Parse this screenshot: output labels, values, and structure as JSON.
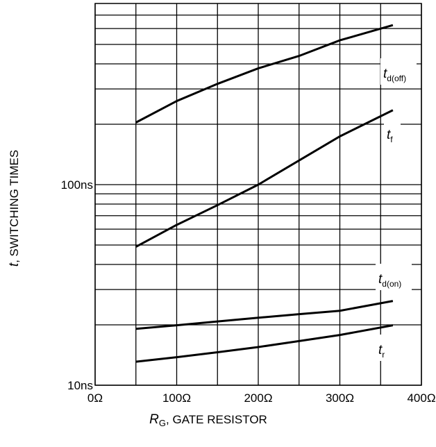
{
  "chart_data": {
    "type": "line",
    "ylabel_italic": "t",
    "ylabel": ", SWITCHING TIMES",
    "xlabel_italic": "R",
    "xlabel_sub": "G",
    "xlabel": ", GATE RESISTOR",
    "xlim": [
      0,
      400
    ],
    "xticks": [
      {
        "value": 0,
        "label": "0Ω"
      },
      {
        "value": 100,
        "label": "100Ω"
      },
      {
        "value": 200,
        "label": "200Ω"
      },
      {
        "value": 300,
        "label": "300Ω"
      },
      {
        "value": 400,
        "label": "400Ω"
      }
    ],
    "minor_xticks": [
      50,
      150,
      250,
      350
    ],
    "ylim": [
      10,
      800
    ],
    "log_y": true,
    "yticks": [
      {
        "value": 10,
        "label": "10ns"
      },
      {
        "value": 100,
        "label": "100ns"
      }
    ],
    "minor_yticks": [
      20,
      30,
      40,
      50,
      60,
      70,
      80,
      90,
      200,
      300,
      400,
      500,
      600,
      700
    ],
    "grid": true,
    "x": [
      50,
      100,
      150,
      200,
      250,
      300,
      365
    ],
    "series": [
      {
        "name": "t",
        "name_sub": "d(off)",
        "color": "#000000",
        "values": [
          204,
          261,
          318,
          380,
          438,
          524,
          624
        ]
      },
      {
        "name": "t",
        "name_sub": "f",
        "color": "#000000",
        "values": [
          49,
          63,
          79,
          100,
          132,
          174,
          235
        ]
      },
      {
        "name": "t",
        "name_sub": "d(on)",
        "color": "#000000",
        "values": [
          19.1,
          19.9,
          20.8,
          21.7,
          22.6,
          23.5,
          26.3
        ]
      },
      {
        "name": "t",
        "name_sub": "r",
        "color": "#000000",
        "values": [
          13.1,
          13.8,
          14.6,
          15.5,
          16.6,
          17.8,
          19.9
        ]
      }
    ]
  }
}
